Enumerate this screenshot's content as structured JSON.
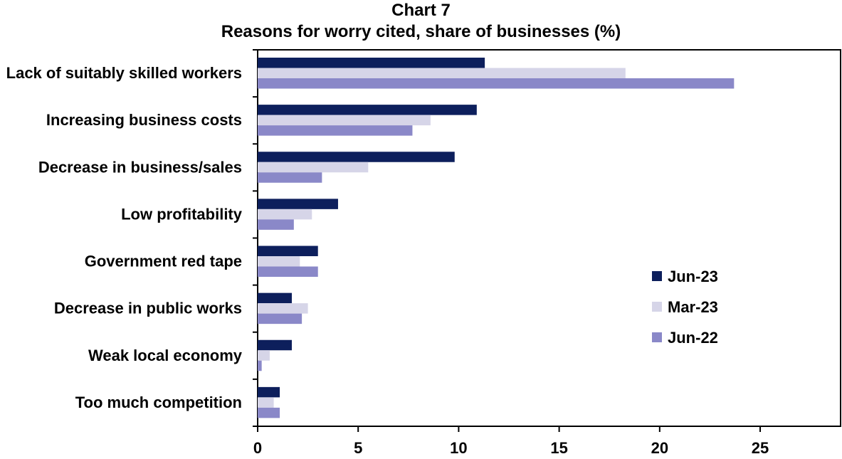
{
  "chart_data": {
    "type": "bar",
    "orientation": "horizontal",
    "title": "Chart 7",
    "subtitle": "Reasons for worry cited, share of businesses (%)",
    "categories": [
      "Lack of suitably skilled workers",
      "Increasing business costs",
      "Decrease in business/sales",
      "Low profitability",
      "Government red tape",
      "Decrease in public works",
      "Weak local economy",
      "Too much competition"
    ],
    "series": [
      {
        "name": "Jun-23",
        "color": "#0d1f5c",
        "values": [
          11.3,
          10.9,
          9.8,
          4.0,
          3.0,
          1.7,
          1.7,
          1.1
        ]
      },
      {
        "name": "Mar-23",
        "color": "#d6d5e8",
        "values": [
          18.3,
          8.6,
          5.5,
          2.7,
          2.1,
          2.5,
          0.6,
          0.8
        ]
      },
      {
        "name": "Jun-22",
        "color": "#8a88c8",
        "values": [
          23.7,
          7.7,
          3.2,
          1.8,
          3.0,
          2.2,
          0.2,
          1.1
        ]
      }
    ],
    "xticks": [
      "0",
      "5",
      "10",
      "15",
      "20",
      "25"
    ],
    "xlim": [
      0,
      29
    ],
    "xlabel": "",
    "ylabel": "",
    "grid": false,
    "legend_position": "right"
  }
}
